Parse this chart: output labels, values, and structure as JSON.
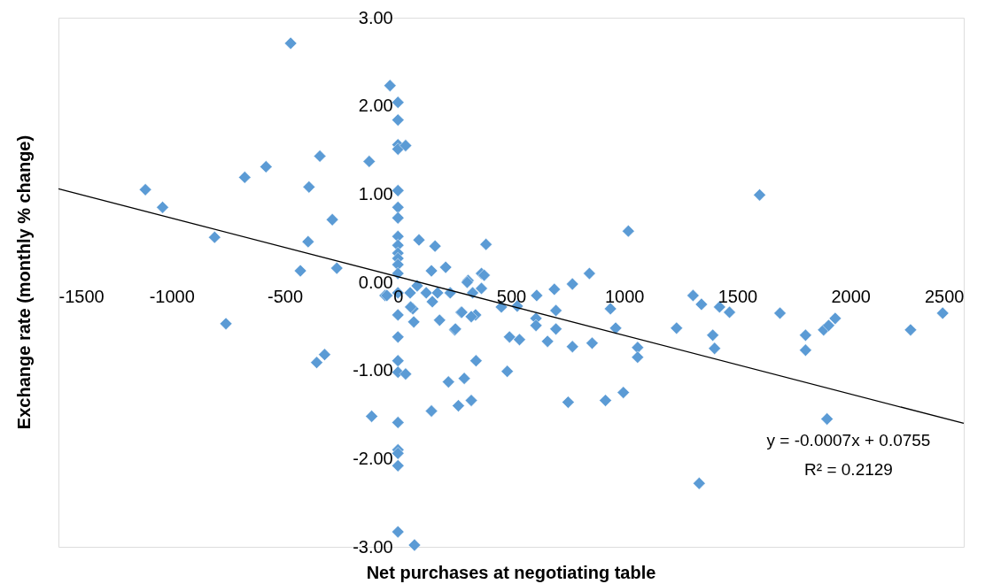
{
  "chart_data": {
    "type": "scatter",
    "xlabel": "Net purchases at negotiating table",
    "ylabel": "Exchange rate (monthly % change)",
    "annotations": [
      "y = -0.0007x + 0.0755",
      "R² = 0.2129"
    ],
    "xlim": [
      -1500,
      2500
    ],
    "xticks": [
      -1500,
      -1000,
      -500,
      0,
      500,
      1000,
      1500,
      2000,
      2500
    ],
    "ylim": [
      -3,
      3
    ],
    "yticks": [
      {
        "value": -3,
        "label": "-3.00"
      },
      {
        "value": -2,
        "label": "-2.00"
      },
      {
        "value": -1,
        "label": "-1.00"
      },
      {
        "value": 0,
        "label": "0.00"
      },
      {
        "value": 1,
        "label": "1.00"
      },
      {
        "value": 2,
        "label": "2.00"
      },
      {
        "value": 3,
        "label": "3.00"
      }
    ],
    "series": [
      {
        "marker": "diamond",
        "color": "#5b9bd5",
        "x": [
          -474,
          -35,
          0,
          0,
          0,
          0,
          34,
          -345,
          -127,
          -583,
          -677,
          -1116,
          -393,
          0,
          -1040,
          0,
          0,
          -290,
          -810,
          -397,
          93,
          164,
          389,
          0,
          0,
          0,
          0,
          0,
          -431,
          -270,
          148,
          211,
          369,
          310,
          -57,
          0,
          0,
          0,
          0,
          54,
          66,
          85,
          125,
          152,
          175,
          184,
          231,
          251,
          279,
          306,
          330,
          343,
          369,
          381,
          -49,
          70,
          254,
          324,
          56,
          282,
          0,
          0,
          34,
          -324,
          -359,
          -760,
          345,
          223,
          293,
          -116,
          0,
          148,
          267,
          324,
          0,
          0,
          0,
          0,
          73,
          1598,
          1018,
          846,
          771,
          691,
          613,
          457,
          527,
          610,
          610,
          698,
          698,
          493,
          537,
          661,
          771,
          858,
          939,
          962,
          1059,
          1059,
          483,
          752,
          917,
          996,
          1231,
          1304,
          1341,
          1421,
          1465,
          1391,
          1399,
          1331,
          1688,
          1801,
          1801,
          1881,
          1903,
          1932,
          1896,
          2265,
          2407
        ],
        "values": [
          2.71,
          2.23,
          2.04,
          1.84,
          1.56,
          1.51,
          1.55,
          1.43,
          1.37,
          1.31,
          1.19,
          1.05,
          1.08,
          1.04,
          0.85,
          0.85,
          0.73,
          0.71,
          0.51,
          0.46,
          0.48,
          0.41,
          0.43,
          0.52,
          0.42,
          0.33,
          0.27,
          0.2,
          0.13,
          0.16,
          0.13,
          0.17,
          0.1,
          0.02,
          -0.15,
          0.1,
          -0.12,
          -0.37,
          -0.62,
          -0.12,
          -0.3,
          -0.04,
          -0.12,
          -0.22,
          -0.12,
          -0.43,
          -0.12,
          -0.54,
          -0.34,
          0,
          -0.12,
          -0.37,
          -0.07,
          0.08,
          -0.15,
          -0.45,
          -0.53,
          -0.39,
          -0.28,
          -0.34,
          -0.89,
          -1.02,
          -1.04,
          -0.82,
          -0.91,
          -0.47,
          -0.89,
          -1.13,
          -1.09,
          -1.52,
          -1.59,
          -1.46,
          -1.4,
          -1.34,
          -1.9,
          -1.94,
          -2.08,
          -2.83,
          -2.98,
          0.99,
          0.58,
          0.1,
          -0.02,
          -0.08,
          -0.15,
          -0.28,
          -0.27,
          -0.41,
          -0.49,
          -0.32,
          -0.53,
          -0.62,
          -0.65,
          -0.67,
          -0.73,
          -0.69,
          -0.3,
          -0.52,
          -0.74,
          -0.85,
          -1.01,
          -1.36,
          -1.34,
          -1.25,
          -0.52,
          -0.15,
          -0.25,
          -0.28,
          -0.34,
          -0.6,
          -0.75,
          -2.28,
          -0.35,
          -0.6,
          -0.77,
          -0.54,
          -0.49,
          -0.41,
          -1.55,
          -0.54,
          -0.35
        ]
      },
      {
        "type": "line",
        "color": "#000000",
        "x": [
          -1500,
          2500
        ],
        "values": [
          1.06,
          -1.6
        ]
      }
    ]
  }
}
